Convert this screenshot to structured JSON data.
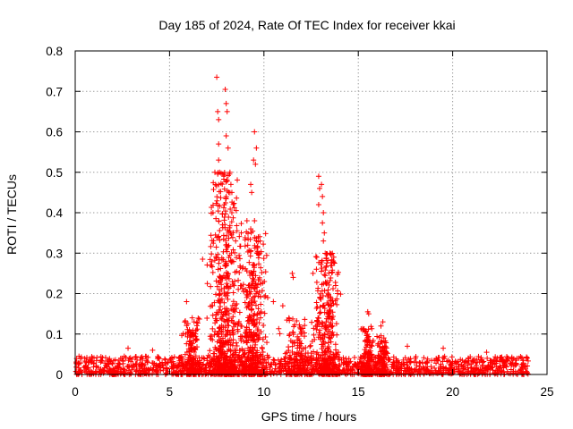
{
  "chart_data": {
    "type": "scatter",
    "title": "Day 185 of 2024, Rate Of TEC Index for receiver kkai",
    "xlabel": "GPS time / hours",
    "ylabel": "ROTI / TECUs",
    "xlim": [
      0,
      25
    ],
    "ylim": [
      0,
      0.8
    ],
    "x_ticks": [
      0,
      5,
      10,
      15,
      20,
      25
    ],
    "x_tick_labels": [
      "0",
      "5",
      "10",
      "15",
      "20",
      "25"
    ],
    "y_ticks": [
      0,
      0.1,
      0.2,
      0.3,
      0.4,
      0.5,
      0.6,
      0.7,
      0.8
    ],
    "y_tick_labels": [
      "0",
      "0.1",
      "0.2",
      "0.3",
      "0.4",
      "0.5",
      "0.6",
      "0.7",
      "0.8"
    ],
    "grid": true,
    "marker": "+",
    "marker_color": "#ff0000",
    "series": [
      {
        "name": "ROTI",
        "baseline_range": [
          0,
          24
        ],
        "baseline_max": 0.045,
        "bursts": [
          {
            "center": 7.9,
            "width": 0.55,
            "max": 0.5
          },
          {
            "center": 9.4,
            "width": 0.45,
            "max": 0.36
          },
          {
            "center": 13.3,
            "width": 0.45,
            "max": 0.3
          },
          {
            "center": 11.8,
            "width": 0.6,
            "max": 0.14
          },
          {
            "center": 6.2,
            "width": 0.3,
            "max": 0.14
          },
          {
            "center": 15.5,
            "width": 0.25,
            "max": 0.12
          },
          {
            "center": 16.3,
            "width": 0.2,
            "max": 0.1
          }
        ],
        "points": [
          [
            7.5,
            0.735
          ],
          [
            7.95,
            0.705
          ],
          [
            8.0,
            0.67
          ],
          [
            7.55,
            0.65
          ],
          [
            7.6,
            0.63
          ],
          [
            8.05,
            0.65
          ],
          [
            9.5,
            0.6
          ],
          [
            7.6,
            0.57
          ],
          [
            9.6,
            0.56
          ],
          [
            9.45,
            0.53
          ],
          [
            9.55,
            0.52
          ],
          [
            8.0,
            0.59
          ],
          [
            8.1,
            0.56
          ],
          [
            7.6,
            0.53
          ],
          [
            7.4,
            0.5
          ],
          [
            7.65,
            0.5
          ],
          [
            8.2,
            0.5
          ],
          [
            8.25,
            0.47
          ],
          [
            12.9,
            0.49
          ],
          [
            12.95,
            0.46
          ],
          [
            13.05,
            0.47
          ],
          [
            13.1,
            0.44
          ],
          [
            9.3,
            0.47
          ],
          [
            9.35,
            0.45
          ],
          [
            8.3,
            0.45
          ],
          [
            8.0,
            0.44
          ],
          [
            7.9,
            0.42
          ],
          [
            12.9,
            0.42
          ],
          [
            13.15,
            0.4
          ],
          [
            13.1,
            0.375
          ],
          [
            13.2,
            0.35
          ],
          [
            13.15,
            0.33
          ],
          [
            7.3,
            0.4
          ],
          [
            8.3,
            0.4
          ],
          [
            9.1,
            0.38
          ],
          [
            9.3,
            0.36
          ],
          [
            9.5,
            0.38
          ],
          [
            9.7,
            0.34
          ],
          [
            9.8,
            0.33
          ],
          [
            8.8,
            0.35
          ],
          [
            8.5,
            0.33
          ],
          [
            7.8,
            0.37
          ],
          [
            6.75,
            0.285
          ],
          [
            7.0,
            0.225
          ],
          [
            5.9,
            0.18
          ],
          [
            6.2,
            0.14
          ],
          [
            6.3,
            0.13
          ],
          [
            12.8,
            0.29
          ],
          [
            13.5,
            0.3
          ],
          [
            13.7,
            0.29
          ],
          [
            13.6,
            0.27
          ],
          [
            11.5,
            0.25
          ],
          [
            11.55,
            0.24
          ],
          [
            12.6,
            0.25
          ],
          [
            13.8,
            0.22
          ],
          [
            13.9,
            0.2
          ],
          [
            15.5,
            0.155
          ],
          [
            15.55,
            0.15
          ],
          [
            16.3,
            0.13
          ],
          [
            16.2,
            0.12
          ],
          [
            10.2,
            0.19
          ],
          [
            10.5,
            0.18
          ],
          [
            11.0,
            0.17
          ],
          [
            21.8,
            0.055
          ],
          [
            19.5,
            0.065
          ],
          [
            17.6,
            0.07
          ],
          [
            2.8,
            0.065
          ],
          [
            0.2,
            0.045
          ],
          [
            4.1,
            0.06
          ]
        ]
      }
    ]
  }
}
